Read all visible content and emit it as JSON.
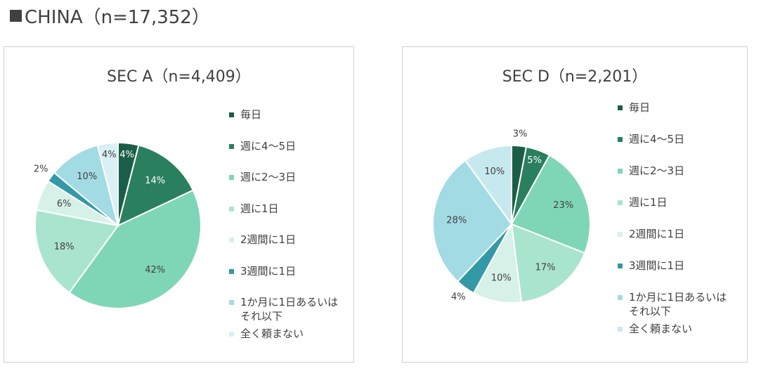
{
  "header": {
    "title": "CHINA（n=17,352）"
  },
  "chart_data": [
    {
      "type": "pie",
      "title": "SEC A（n=4,409）",
      "categories": [
        "毎日",
        "週に4～5日",
        "週に2～3日",
        "週に1日",
        "2週間に1日",
        "3週間に1日",
        "1か月に1日あるいはそれ以下",
        "全く頼まない"
      ],
      "values": [
        4,
        14,
        42,
        18,
        6,
        2,
        10,
        4
      ],
      "value_labels": [
        "4%",
        "14%",
        "42%",
        "18%",
        "6%",
        "2%",
        "10%",
        "4%"
      ],
      "colors": [
        "#1b5e48",
        "#2a7f5f",
        "#7fd6b6",
        "#a9e4cf",
        "#d6f1e8",
        "#3399a6",
        "#a3dbe4",
        "#d9f0f4"
      ]
    },
    {
      "type": "pie",
      "title": "SEC D（n=2,201）",
      "categories": [
        "毎日",
        "週に4～5日",
        "週に2～3日",
        "週に1日",
        "2週間に1日",
        "3週間に1日",
        "1か月に1日あるいはそれ以下",
        "全く頼まない"
      ],
      "values": [
        3,
        5,
        23,
        17,
        10,
        4,
        28,
        10
      ],
      "value_labels": [
        "3%",
        "5%",
        "23%",
        "17%",
        "10%",
        "4%",
        "28%",
        "10%"
      ],
      "colors": [
        "#1b5e48",
        "#2a7f5f",
        "#7fd6b6",
        "#a9e4cf",
        "#d6f1e8",
        "#3399a6",
        "#a3dbe4",
        "#c6e9ef"
      ]
    }
  ]
}
